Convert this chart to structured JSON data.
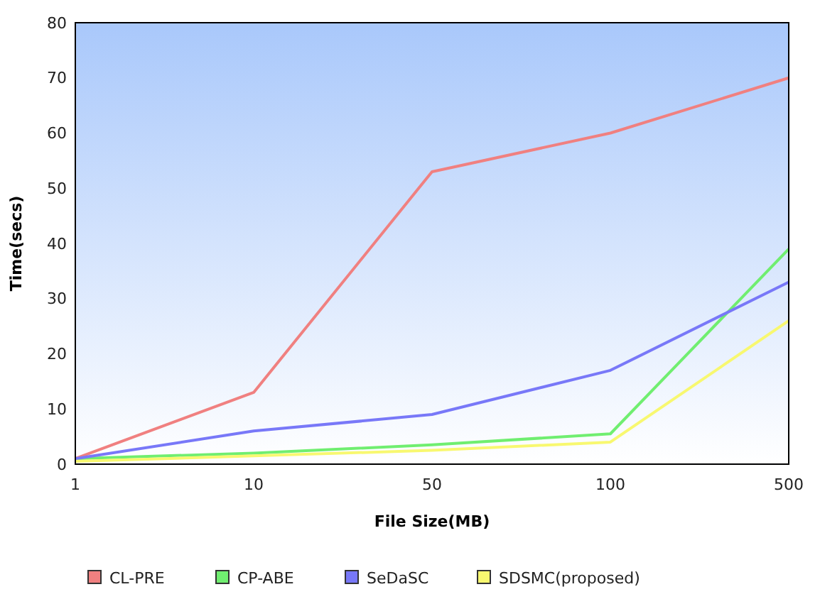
{
  "chart_data": {
    "type": "line",
    "xlabel": "File Size(MB)",
    "ylabel": "Time(secs)",
    "categories": [
      "1",
      "10",
      "50",
      "100",
      "500"
    ],
    "ylim": [
      0,
      80
    ],
    "yticks": [
      0,
      10,
      20,
      30,
      40,
      50,
      60,
      70,
      80
    ],
    "grid": false,
    "legend": "bottom",
    "marker": "none",
    "line_style": "solid",
    "series": [
      {
        "name": "CL-PRE",
        "color": "#f08080",
        "values": [
          1,
          13,
          53,
          60,
          70
        ]
      },
      {
        "name": "CP-ABE",
        "color": "#70ee70",
        "values": [
          1,
          2,
          3.5,
          5.5,
          39
        ]
      },
      {
        "name": "SeDaSC",
        "color": "#7878f8",
        "values": [
          1,
          6,
          9,
          17,
          33
        ]
      },
      {
        "name": "SDSMC(proposed)",
        "color": "#f8f870",
        "values": [
          0.5,
          1.5,
          2.5,
          4,
          26
        ]
      }
    ]
  }
}
